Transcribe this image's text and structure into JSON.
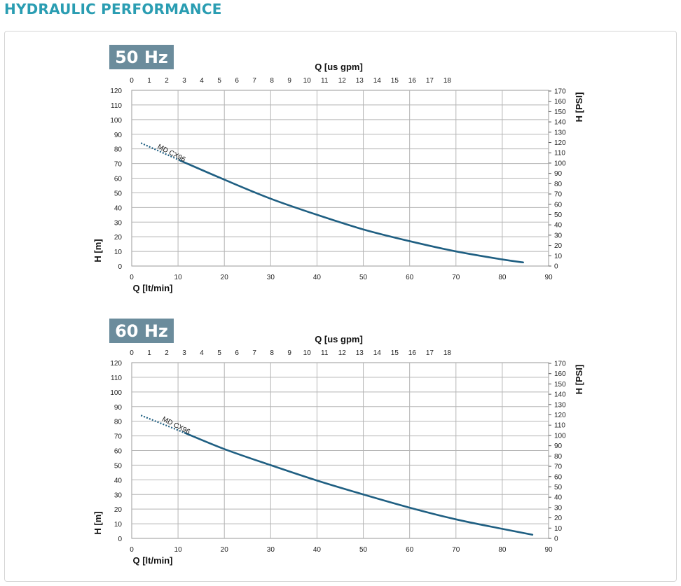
{
  "page": {
    "title": "HYDRAULIC PERFORMANCE",
    "colors": {
      "title": "#2a9db2",
      "curve": "#1f5f82",
      "badge": "#6b8c9c",
      "grid": "#b5b5b5"
    }
  },
  "chart_data": [
    {
      "type": "line",
      "frequency_label": "50 Hz",
      "xlabel_bottom": "Q [lt/min]",
      "xlabel_top": "Q [us gpm]",
      "ylabel_left": "H [m]",
      "ylabel_right": "H [PSI]",
      "xlim": [
        0,
        90
      ],
      "ylim": [
        0,
        120
      ],
      "x_ticks": [
        0,
        10,
        20,
        30,
        40,
        50,
        60,
        70,
        80,
        90
      ],
      "y_ticks": [
        0,
        10,
        20,
        30,
        40,
        50,
        60,
        70,
        80,
        90,
        100,
        110,
        120
      ],
      "top_ticks": [
        0,
        1,
        2,
        3,
        4,
        5,
        6,
        7,
        8,
        9,
        10,
        11,
        12,
        13,
        14,
        15,
        16,
        17,
        18
      ],
      "right_ticks": [
        0,
        10,
        20,
        30,
        40,
        50,
        60,
        70,
        80,
        90,
        100,
        110,
        120,
        130,
        140,
        150,
        160,
        170
      ],
      "grid": true,
      "series": [
        {
          "name": "MD CX96",
          "dashed_x": [
            2,
            10.5
          ],
          "dashed_y": [
            84,
            72
          ],
          "x": [
            10.5,
            20,
            30,
            40,
            50,
            60,
            70,
            80,
            84.5
          ],
          "y": [
            72,
            59,
            46,
            35,
            25,
            17,
            10,
            4.5,
            2.5
          ]
        }
      ]
    },
    {
      "type": "line",
      "frequency_label": "60 Hz",
      "xlabel_bottom": "Q [lt/min]",
      "xlabel_top": "Q [us gpm]",
      "ylabel_left": "H [m]",
      "ylabel_right": "H [PSI]",
      "xlim": [
        0,
        90
      ],
      "ylim": [
        0,
        120
      ],
      "x_ticks": [
        0,
        10,
        20,
        30,
        40,
        50,
        60,
        70,
        80,
        90
      ],
      "y_ticks": [
        0,
        10,
        20,
        30,
        40,
        50,
        60,
        70,
        80,
        90,
        100,
        110,
        120
      ],
      "top_ticks": [
        0,
        1,
        2,
        3,
        4,
        5,
        6,
        7,
        8,
        9,
        10,
        11,
        12,
        13,
        14,
        15,
        16,
        17,
        18
      ],
      "right_ticks": [
        0,
        10,
        20,
        30,
        40,
        50,
        60,
        70,
        80,
        90,
        100,
        110,
        120,
        130,
        140,
        150,
        160,
        170
      ],
      "grid": true,
      "series": [
        {
          "name": "MD CX96",
          "dashed_x": [
            2,
            11.5
          ],
          "dashed_y": [
            84,
            72
          ],
          "x": [
            11.5,
            20,
            30,
            40,
            50,
            60,
            70,
            80,
            86.5
          ],
          "y": [
            72,
            61,
            50,
            39.5,
            30,
            21,
            13,
            6.5,
            2.5
          ]
        }
      ]
    }
  ]
}
